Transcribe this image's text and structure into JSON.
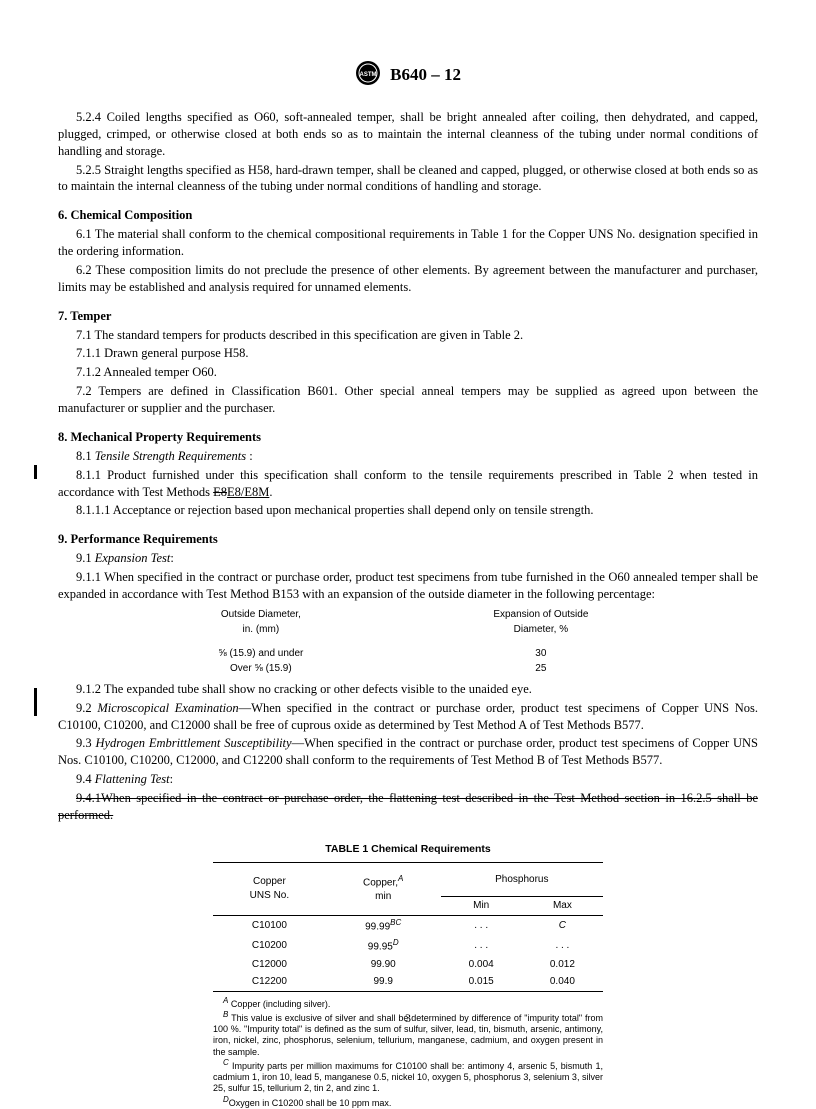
{
  "header": {
    "doc_id": "B640 – 12"
  },
  "paras": {
    "p524": "5.2.4  Coiled lengths specified as O60, soft-annealed temper, shall be bright annealed after coiling, then dehydrated, and capped, plugged, crimped, or otherwise closed at both ends so as to maintain the internal cleanness of the tubing under normal conditions of handling and storage.",
    "p525": "5.2.5  Straight lengths specified as H58, hard-drawn temper, shall be cleaned and capped, plugged, or otherwise closed at both ends so as to maintain the internal cleanness of the tubing under normal conditions of handling and storage.",
    "h6": "6.  Chemical Composition",
    "p61": "6.1  The material shall conform to the chemical compositional requirements in Table 1 for the Copper UNS No. designation specified in the ordering information.",
    "p62": "6.2  These composition limits do not preclude the presence of other elements. By agreement between the manufacturer and purchaser, limits may be established and analysis required for unnamed elements.",
    "h7": "7.  Temper",
    "p71": "7.1  The standard tempers for products described in this specification are given in Table 2.",
    "p711": "7.1.1  Drawn general purpose H58.",
    "p712": "7.1.2  Annealed temper O60.",
    "p72": "7.2  Tempers are defined in Classification B601. Other special anneal tempers may be supplied as agreed upon between the manufacturer or supplier and the purchaser.",
    "h8": "8.  Mechanical Property Requirements",
    "p81_lead": "8.1  ",
    "p81_it": "Tensile Strength Requirements ",
    "p81_tail": ":",
    "p811_a": "8.1.1  Product furnished under this specification shall conform to the tensile requirements prescribed in Table 2 when tested in accordance with Test Methods ",
    "p811_strike": "E8",
    "p811_ins": "E8/E8M",
    "p811_b": ".",
    "p8111": "8.1.1.1  Acceptance or rejection based upon mechanical properties shall depend only on tensile strength.",
    "h9": "9.  Performance Requirements",
    "p91_lead": "9.1  ",
    "p91_it": "Expansion Test",
    "p91_tail": ":",
    "p911": "9.1.1  When specified in the contract or purchase order, product test specimens from tube furnished in the O60 annealed temper shall be expanded in accordance with Test Method B153 with an expansion of the outside diameter in the following percentage:",
    "p912": "9.1.2  The expanded tube shall show no cracking or other defects visible to the unaided eye.",
    "p92_lead": "9.2  ",
    "p92_it": "Microscopical Examination",
    "p92_tail": "—When specified in the contract or purchase order, product test specimens of Copper UNS Nos. C10100, C10200, and C12000 shall be free of cuprous oxide as determined by Test Method A of Test Methods B577.",
    "p93_lead": "9.3  ",
    "p93_it": "Hydrogen Embrittlement Susceptibility",
    "p93_tail": "—When specified in the contract or purchase order, product test specimens of Copper UNS Nos. C10100, C10200, C12000, and C12200 shall conform to the requirements of Test Method B of Test Methods B577.",
    "p94_lead": "9.4  ",
    "p94_it": "Flattening Test",
    "p94_tail": ":",
    "p941_strike": "9.4.1When specified in the contract or purchase order, the flattening test described in the Test Method section in 16.2.5 shall be performed."
  },
  "exp_table": {
    "h1a": "Outside Diameter,",
    "h1b": "in. (mm)",
    "h2a": "Expansion of Outside",
    "h2b": "Diameter, %",
    "rows": [
      {
        "d": "⅝ (15.9) and under",
        "v": "30"
      },
      {
        "d": "Over ⅝ (15.9)",
        "v": "25"
      }
    ]
  },
  "table1": {
    "title": "TABLE 1  Chemical Requirements",
    "col1a": "Copper",
    "col1b": "UNS No.",
    "col2a": "Copper,",
    "col2sup": "A",
    "col2b": "min",
    "col3": "Phosphorus",
    "col3a": "Min",
    "col3b": "Max",
    "rows": [
      {
        "uns": "C10100",
        "cu": "99.99",
        "cusup": "BC",
        "min": ". . .",
        "max": "C",
        "max_italic": true
      },
      {
        "uns": "C10200",
        "cu": "99.95",
        "cusup": "D",
        "min": ". . .",
        "max": ". . ."
      },
      {
        "uns": "C12000",
        "cu": "99.90",
        "cusup": "",
        "min": "0.004",
        "max": "0.012"
      },
      {
        "uns": "C12200",
        "cu": "99.9",
        "cusup": "",
        "min": "0.015",
        "max": "0.040"
      }
    ],
    "fnA": " Copper (including silver).",
    "fnB": " This value is exclusive of silver and shall be determined by difference of \"impurity total\" from 100 %. \"Impurity total\" is defined as the sum of sulfur, silver, lead, tin, bismuth, arsenic, antimony, iron, nickel, zinc, phosphorus, selenium, tellurium, manganese, cadmium, and oxygen present in the sample.",
    "fnC": " Impurity parts per million maximums for C10100 shall be: antimony 4, arsenic 5, bismuth 1, cadmium 1, iron 10, lead 5, manganese 0.5, nickel 10, oxygen 5, phosphorus 3, selenium 3, silver 25, sulfur 15, tellurium 2, tin 2, and zinc 1.",
    "fnD": "Oxygen in C10200 shall be 10 ppm max."
  },
  "page_number": "3"
}
